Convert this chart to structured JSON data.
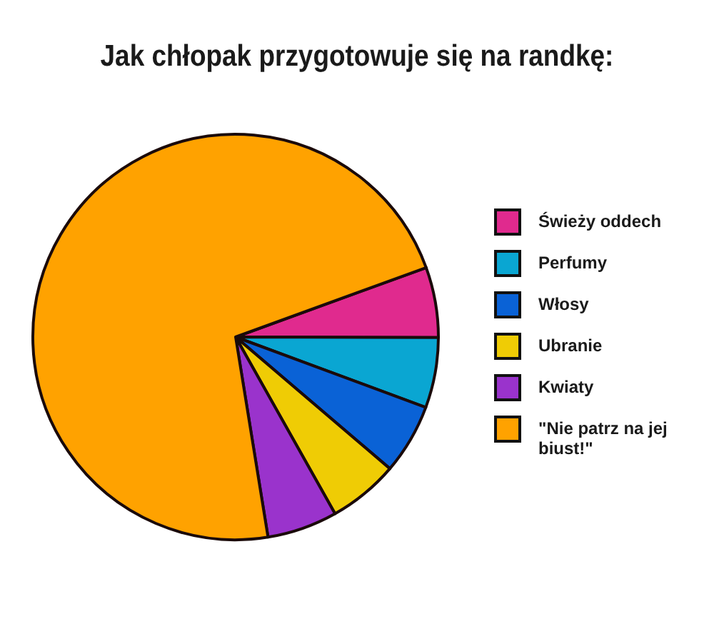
{
  "chart_data": {
    "type": "pie",
    "title": "Jak chłopak przygotowuje się na randkę:",
    "categories": [
      "Świeży oddech",
      "Perfumy",
      "Włosy",
      "Ubranie",
      "Kwiaty",
      "\"Nie patrz na jej biust!\""
    ],
    "values": [
      5.6,
      5.6,
      5.6,
      5.6,
      5.6,
      72
    ],
    "colors": [
      "#e02a8e",
      "#0aa6d2",
      "#0a62d6",
      "#efcc05",
      "#9a33cc",
      "#ffa200"
    ],
    "legend": "right"
  }
}
